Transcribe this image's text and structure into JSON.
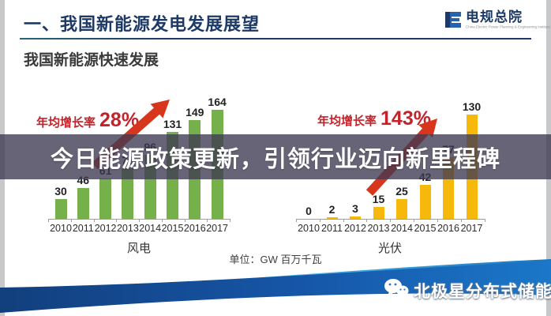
{
  "slide": {
    "header": {
      "title": "一、我国新能源发电发展展望",
      "logo_text": "电规总院",
      "logo_subtext": "China Electric Power Planning & Engineering Institute"
    },
    "section_heading": "我国新能源快速发展",
    "unit_note": "单位：GW  百万千瓦"
  },
  "overlay_banner": {
    "text": "今日能源政策更新，引领行业迈向新里程碑"
  },
  "watermark": {
    "icon": "wechat-icon",
    "text": "北极星分布式储能"
  },
  "colors": {
    "title_navy": "#1d3966",
    "growth_red": "#c4232a",
    "arrow_red": "#d8361c",
    "wind_bar_green": "#76b04a",
    "solar_bar_yellow": "#f6b90b",
    "banner_overlay": "rgba(62,56,82,0.78)",
    "wave_dark_blue": "#1656a8",
    "wave_light_blue": "#2fa7dd"
  },
  "chart_data": [
    {
      "type": "bar",
      "title": "风电",
      "growth_label": "年均增长率",
      "growth_rate": "28%",
      "categories": [
        "2010",
        "2011",
        "2012",
        "2013",
        "2014",
        "2015",
        "2016",
        "2017"
      ],
      "values": [
        30,
        46,
        61,
        76,
        96,
        131,
        149,
        164
      ],
      "unit": "GW",
      "ylabel": "",
      "ylim": [
        0,
        180
      ],
      "grid": false,
      "legend": "none",
      "bar_color": "#76b04a"
    },
    {
      "type": "bar",
      "title": "光伏",
      "growth_label": "年均增长率",
      "growth_rate": "143%",
      "categories": [
        "2010",
        "2011",
        "2012",
        "2013",
        "2014",
        "2015",
        "2016",
        "2017"
      ],
      "values": [
        0,
        2,
        3,
        15,
        25,
        42,
        77,
        130
      ],
      "unit": "GW",
      "ylabel": "",
      "ylim": [
        0,
        145
      ],
      "grid": false,
      "legend": "none",
      "bar_color": "#f6b90b"
    }
  ]
}
